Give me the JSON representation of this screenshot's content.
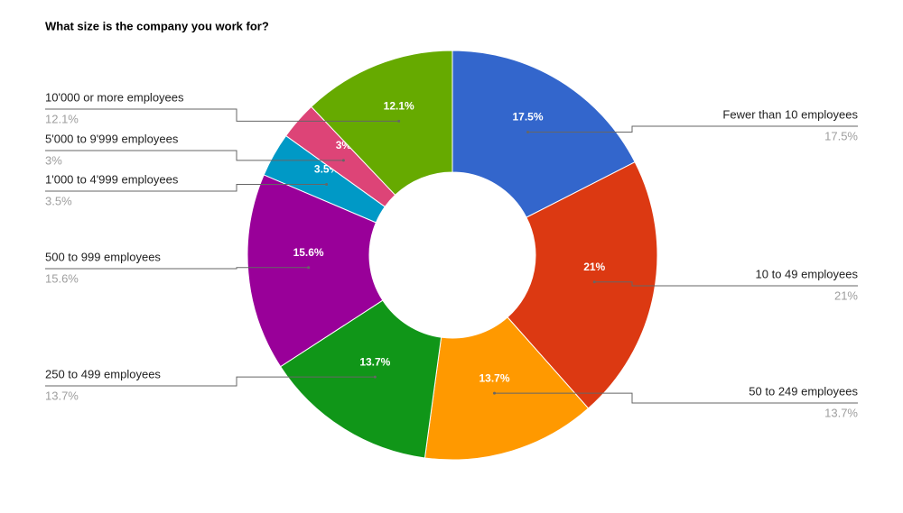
{
  "chart_data": {
    "type": "donut",
    "title": "What size is the company you work for?",
    "categories": [
      "Fewer than 10 employees",
      "10 to 49 employees",
      "50 to 249 employees",
      "250 to 499 employees",
      "500 to 999 employees",
      "1'000 to 4'999 employees",
      "5'000 to 9'999 employees",
      "10'000 or more employees"
    ],
    "values": [
      17.5,
      21,
      13.7,
      13.7,
      15.6,
      3.5,
      3,
      12.1
    ],
    "value_labels": [
      "17.5%",
      "21%",
      "13.7%",
      "13.7%",
      "15.6%",
      "3.5%",
      "3%",
      "12.1%"
    ],
    "colors": [
      "#3366cc",
      "#dc3912",
      "#ff9900",
      "#109618",
      "#990099",
      "#0099c6",
      "#dd4477",
      "#66aa00"
    ]
  }
}
